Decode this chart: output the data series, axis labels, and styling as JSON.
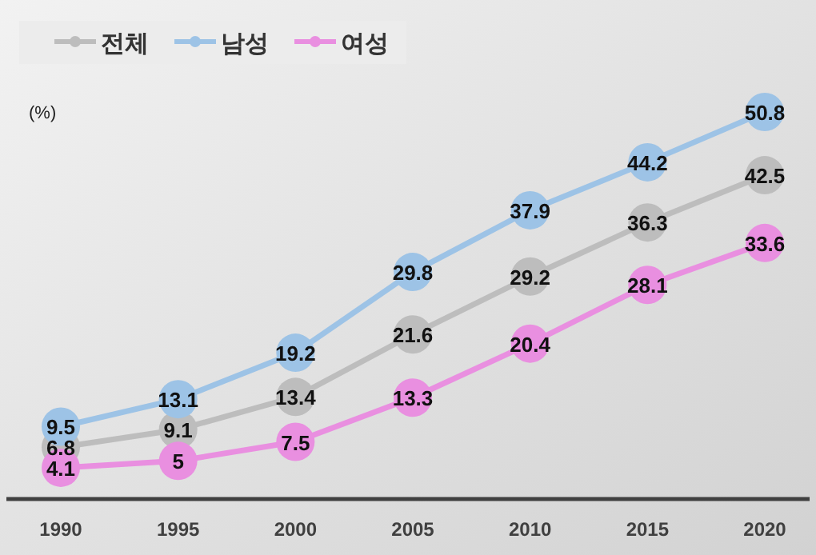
{
  "chart_data": {
    "type": "line",
    "ylabel": "(%)",
    "categories": [
      "1990",
      "1995",
      "2000",
      "2005",
      "2010",
      "2015",
      "2020"
    ],
    "series": [
      {
        "name": "전체",
        "color": "#bdbdbd",
        "values": [
          6.8,
          9.1,
          13.4,
          21.6,
          29.2,
          36.3,
          42.5
        ]
      },
      {
        "name": "남성",
        "color": "#9dc3e6",
        "values": [
          9.5,
          13.1,
          19.2,
          29.8,
          37.9,
          44.2,
          50.8
        ]
      },
      {
        "name": "여성",
        "color": "#e98fe0",
        "values": [
          4.1,
          5,
          7.5,
          13.3,
          20.4,
          28.1,
          33.6
        ]
      }
    ],
    "data_labels": true,
    "legend": "top left",
    "marker": "circle",
    "line_style": "solid"
  }
}
